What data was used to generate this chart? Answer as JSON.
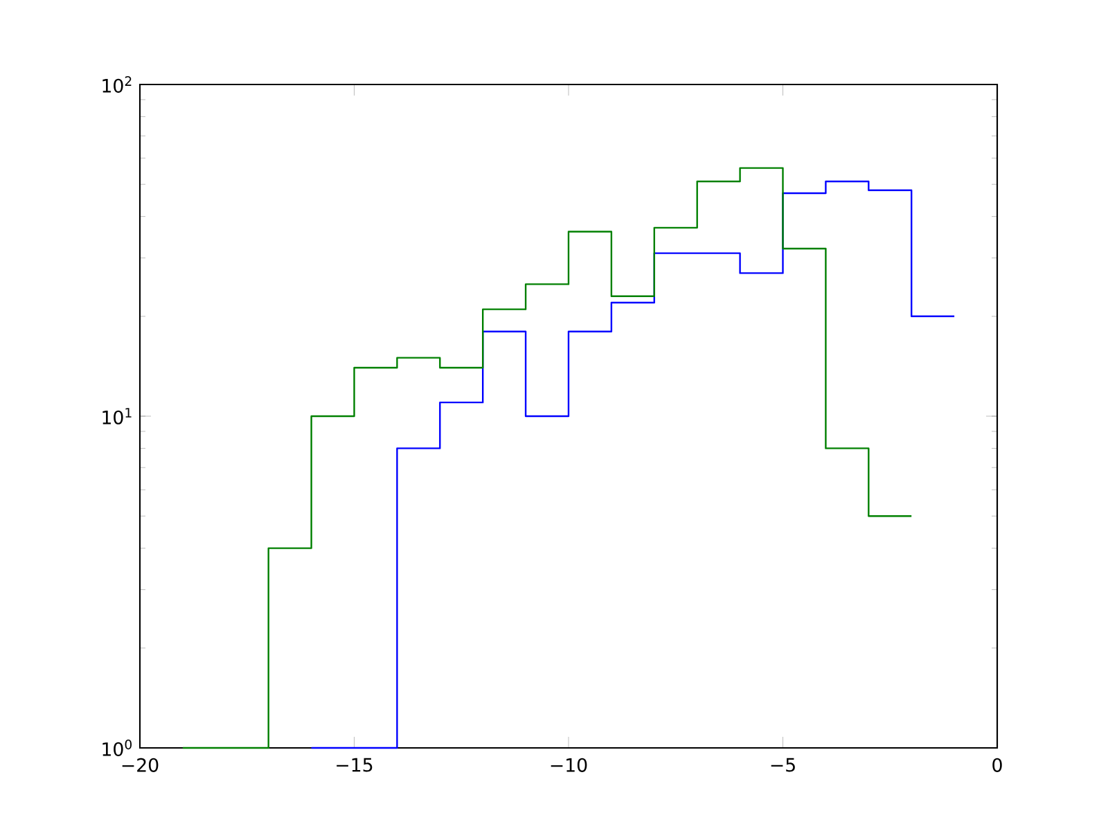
{
  "chart_data": {
    "type": "step",
    "log": true,
    "xlim": [
      -20,
      0
    ],
    "ylim": [
      1,
      100
    ],
    "xticks": [
      {
        "value": -20,
        "label": "−20"
      },
      {
        "value": -15,
        "label": "−15"
      },
      {
        "value": -10,
        "label": "−10"
      },
      {
        "value": -5,
        "label": "−5"
      },
      {
        "value": 0,
        "label": "0"
      }
    ],
    "yticks": [
      {
        "value": 1,
        "label": "10$^{0}$"
      },
      {
        "value": 10,
        "label": "10$^{1}$"
      },
      {
        "value": 100,
        "label": "10$^{2}$"
      }
    ],
    "series": [
      {
        "color": "#0000ff",
        "x": [
          -16,
          -15,
          -14,
          -13,
          -12,
          -11,
          -10,
          -9,
          -8,
          -7,
          -6,
          -5,
          -4,
          -3,
          -2,
          -1
        ],
        "values": [
          1,
          1,
          8,
          11,
          18,
          10,
          18,
          22,
          31,
          31,
          27,
          47,
          51,
          48,
          20,
          20
        ]
      },
      {
        "color": "#008000",
        "x": [
          -19,
          -18,
          -17,
          -16,
          -15,
          -14,
          -13,
          -12,
          -11,
          -10,
          -9,
          -8,
          -7,
          -6,
          -5,
          -4,
          -3,
          -2
        ],
        "values": [
          1,
          1,
          4,
          10,
          14,
          15,
          14,
          21,
          25,
          36,
          23,
          37,
          51,
          56,
          32,
          8,
          5,
          5
        ]
      }
    ]
  }
}
